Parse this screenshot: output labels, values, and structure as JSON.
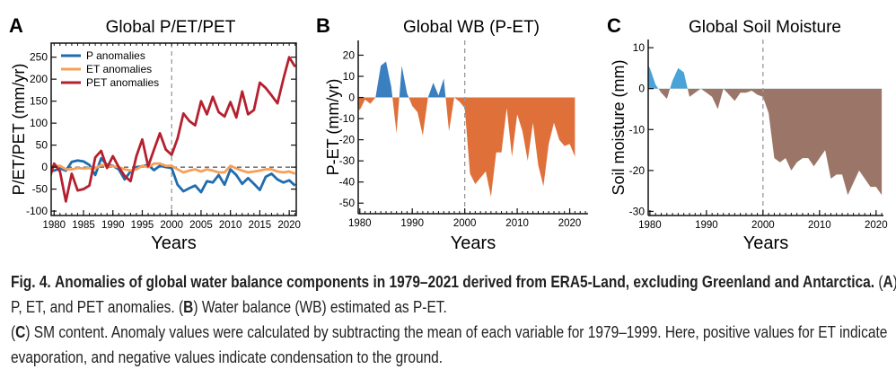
{
  "chart_data": [
    {
      "panel": "A",
      "type": "line",
      "title": "Global P/ET/PET",
      "xlabel": "Years",
      "ylabel": "P/ET/PET (mm/yr)",
      "xlim": [
        1979.5,
        2021.2
      ],
      "ylim": [
        -110,
        282
      ],
      "xticks": [
        1980,
        1985,
        1990,
        1995,
        2000,
        2005,
        2010,
        2015,
        2020
      ],
      "yticks": [
        -100,
        -50,
        0,
        50,
        100,
        150,
        200,
        250
      ],
      "vline": 2000,
      "hline": 0,
      "legend": "top-left",
      "x": [
        1979,
        1980,
        1981,
        1982,
        1983,
        1984,
        1985,
        1986,
        1987,
        1988,
        1989,
        1990,
        1991,
        1992,
        1993,
        1994,
        1995,
        1996,
        1997,
        1998,
        1999,
        2000,
        2001,
        2002,
        2003,
        2004,
        2005,
        2006,
        2007,
        2008,
        2009,
        2010,
        2011,
        2012,
        2013,
        2014,
        2015,
        2016,
        2017,
        2018,
        2019,
        2020,
        2021
      ],
      "series": [
        {
          "name": "P anomalies",
          "color": "#1f6cae",
          "values": [
            -10,
            -8,
            -3,
            -8,
            12,
            15,
            13,
            5,
            -18,
            20,
            5,
            3,
            -5,
            -28,
            -10,
            0,
            2,
            5,
            -7,
            3,
            0,
            -2,
            -40,
            -55,
            -48,
            -42,
            -57,
            -32,
            -35,
            -18,
            -40,
            -5,
            -18,
            -38,
            -25,
            -38,
            -52,
            -22,
            -15,
            -28,
            -35,
            -30,
            -42
          ]
        },
        {
          "name": "ET anomalies",
          "color": "#f5a05a",
          "values": [
            0,
            2,
            3,
            -5,
            -5,
            -2,
            -3,
            -2,
            -3,
            5,
            3,
            2,
            0,
            -5,
            -8,
            -5,
            3,
            0,
            8,
            8,
            3,
            3,
            -5,
            -12,
            -8,
            -5,
            -10,
            -5,
            -8,
            -12,
            -12,
            3,
            -3,
            -8,
            -12,
            -10,
            -8,
            -5,
            -5,
            -10,
            -12,
            -10,
            -15
          ]
        },
        {
          "name": "PET anomalies",
          "color": "#b5202e",
          "values": [
            -35,
            8,
            -10,
            -78,
            -15,
            -53,
            -50,
            -42,
            22,
            37,
            -2,
            25,
            0,
            -20,
            -32,
            25,
            63,
            2,
            40,
            77,
            40,
            28,
            65,
            122,
            105,
            95,
            150,
            120,
            160,
            125,
            115,
            148,
            113,
            172,
            120,
            130,
            192,
            180,
            163,
            145,
            200,
            250,
            228
          ]
        }
      ]
    },
    {
      "panel": "B",
      "type": "area",
      "title": "Global WB (P-ET)",
      "xlabel": "Years",
      "ylabel": "P-ET (mm/yr)",
      "xlim": [
        1979.7,
        2023.5
      ],
      "ylim": [
        -55,
        27
      ],
      "xticks": [
        1980,
        1990,
        2000,
        2010,
        2020
      ],
      "yticks": [
        -50,
        -40,
        -30,
        -20,
        -10,
        0,
        10,
        20
      ],
      "vline": 2000,
      "positive_color": "#3a7fbf",
      "negative_color": "#e0703a",
      "x": [
        1979,
        1980,
        1981,
        1982,
        1983,
        1984,
        1985,
        1986,
        1987,
        1988,
        1989,
        1990,
        1991,
        1992,
        1993,
        1994,
        1995,
        1996,
        1997,
        1998,
        1999,
        2000,
        2001,
        2002,
        2003,
        2004,
        2005,
        2006,
        2007,
        2008,
        2009,
        2010,
        2011,
        2012,
        2013,
        2014,
        2015,
        2016,
        2017,
        2018,
        2019,
        2020,
        2021
      ],
      "values": [
        -2,
        -6,
        -1,
        -3,
        0,
        15,
        17,
        5,
        -17,
        15,
        2,
        -4,
        -7,
        -18,
        0,
        7,
        1,
        9,
        -16,
        0,
        -2,
        -5,
        -36,
        -41,
        -38,
        -35,
        -47,
        -26,
        -26,
        -5,
        -28,
        -8,
        -16,
        -30,
        -12,
        -32,
        -42,
        -22,
        -12,
        -20,
        -23,
        -22,
        -28
      ]
    },
    {
      "panel": "C",
      "type": "area",
      "title": "Global Soil Moisture",
      "xlabel": "Years",
      "ylabel": "Soil moisture (mm)",
      "xlim": [
        1979.7,
        2021.3
      ],
      "ylim": [
        -31,
        12
      ],
      "xticks": [
        1980,
        1990,
        2000,
        2010,
        2020
      ],
      "yticks": [
        -30,
        -20,
        -10,
        0,
        10
      ],
      "vline": 2000,
      "positive_color": "#4aa3d8",
      "negative_color": "#9b7668",
      "x": [
        1979,
        1980,
        1981,
        1982,
        1983,
        1984,
        1985,
        1986,
        1987,
        1988,
        1989,
        1990,
        1991,
        1992,
        1993,
        1994,
        1995,
        1996,
        1997,
        1998,
        1999,
        2000,
        2001,
        2002,
        2003,
        2004,
        2005,
        2006,
        2007,
        2008,
        2009,
        2010,
        2011,
        2012,
        2013,
        2014,
        2015,
        2016,
        2017,
        2018,
        2019,
        2020,
        2021
      ],
      "values": [
        7,
        5,
        1,
        -1,
        -2.5,
        2,
        5,
        4,
        -2,
        -1,
        0,
        -1,
        -2,
        -5,
        0,
        -1.5,
        -3,
        -1,
        -1,
        -0.5,
        -1.5,
        -2,
        -6,
        -17,
        -18,
        -17,
        -20,
        -18,
        -17,
        -17,
        -19,
        -17,
        -15,
        -22,
        -21,
        -21,
        -26,
        -23,
        -20,
        -22,
        -24,
        -24,
        -26
      ]
    }
  ],
  "caption": {
    "fig_label": "Fig. 4.",
    "bold_title": "Anomalies of global water balance components in 1979–2021 derived from ERA5-Land, excluding Greenland and Antarctica.",
    "a_label": "A",
    "a_text": "P, ET, and PET anomalies.",
    "b_label": "B",
    "b_text": "Water balance (WB) estimated as P-ET.",
    "c_label": "C",
    "c_text": "SM content. Anomaly values were calculated by subtracting the mean of each variable for 1979–1999. Here, positive values for ET indicate evaporation, and negative values indicate condensation to the ground."
  }
}
